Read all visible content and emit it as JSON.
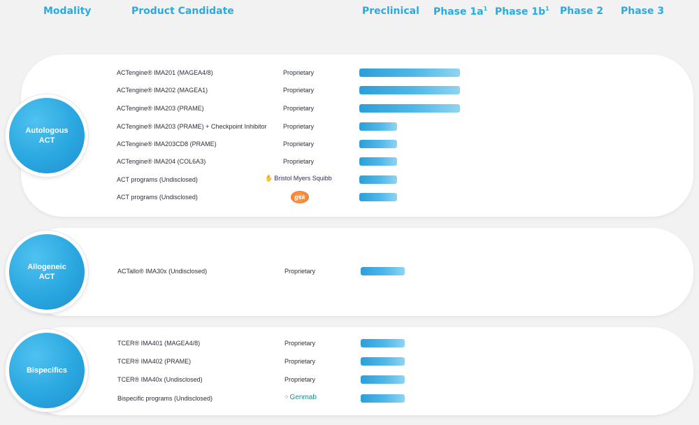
{
  "headers": {
    "modality": "Modality",
    "candidate": "Product Candidate",
    "preclinical": "Preclinical",
    "phase1a": "Phase 1a",
    "phase1a_sup": "1",
    "phase1b": "Phase 1b",
    "phase1b_sup": "1",
    "phase2": "Phase 2",
    "phase3": "Phase 3"
  },
  "colors": {
    "accent": "#29abe2",
    "bar_start": "#2b9fd9",
    "bar_end": "#8fd3f3"
  },
  "chart_data": {
    "type": "bar",
    "orientation": "horizontal",
    "stages": [
      "Preclinical",
      "Phase 1a",
      "Phase 1b",
      "Phase 2",
      "Phase 3"
    ],
    "groups": [
      {
        "modality": "Autologous ACT",
        "rows": [
          {
            "candidate": "ACTengine® IMA201 (MAGEA4/8)",
            "partner": "Proprietary",
            "progress": 1.6
          },
          {
            "candidate": "ACTengine® IMA202 (MAGEA1)",
            "partner": "Proprietary",
            "progress": 1.6
          },
          {
            "candidate": "ACTengine® IMA203 (PRAME)",
            "partner": "Proprietary",
            "progress": 1.6
          },
          {
            "candidate": "ACTengine® IMA203 (PRAME) + Checkpoint Inhibitor",
            "partner": "Proprietary",
            "progress": 0.6
          },
          {
            "candidate": "ACTengine® IMA203CD8 (PRAME)",
            "partner": "Proprietary",
            "progress": 0.6
          },
          {
            "candidate": "ACTengine® IMA204 (COL6A3)",
            "partner": "Proprietary",
            "progress": 0.6
          },
          {
            "candidate": "ACT programs (Undisclosed)",
            "partner": "Bristol Myers Squibb",
            "partner_logo": "bms-logo",
            "progress": 0.6
          },
          {
            "candidate": "ACT programs (Undisclosed)",
            "partner": "gsk",
            "partner_logo": "gsk-logo",
            "progress": 0.6
          }
        ]
      },
      {
        "modality": "Allogeneic ACT",
        "rows": [
          {
            "candidate": "ACTallo® IMA30x (Undisclosed)",
            "partner": "Proprietary",
            "progress": 0.7
          }
        ]
      },
      {
        "modality": "Bispecifics",
        "rows": [
          {
            "candidate": "TCER® IMA401 (MAGEA4/8)",
            "partner": "Proprietary",
            "progress": 0.7
          },
          {
            "candidate": "TCER® IMA402 (PRAME)",
            "partner": "Proprietary",
            "progress": 0.7
          },
          {
            "candidate": "TCER® IMA40x (Undisclosed)",
            "partner": "Proprietary",
            "progress": 0.7
          },
          {
            "candidate": "Bispecific programs (Undisclosed)",
            "partner": "Genmab",
            "partner_logo": "genmab-logo",
            "progress": 0.7
          }
        ]
      }
    ]
  }
}
